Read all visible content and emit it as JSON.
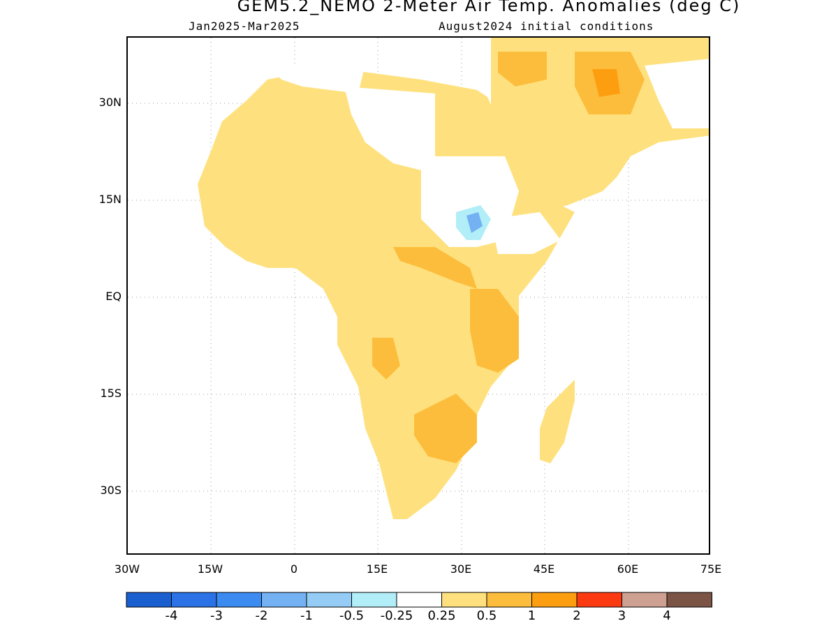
{
  "header": {
    "title": "GEM5.2_NEMO 2-Meter Air Temp. Anomalies (deg C)",
    "period": "Jan2025-Mar2025",
    "init": "August2024 initial conditions"
  },
  "map": {
    "lat_ticks": [
      "30N",
      "15N",
      "EQ",
      "15S",
      "30S"
    ],
    "lon_ticks": [
      "30W",
      "15W",
      "0",
      "15E",
      "30E",
      "45E",
      "60E",
      "75E"
    ],
    "region": "Africa and Middle East",
    "extent": {
      "lon": [
        -30,
        75
      ],
      "lat": [
        -40,
        38
      ]
    }
  },
  "legend": {
    "colors": [
      "#1a5fd0",
      "#2a72e6",
      "#3c8bf0",
      "#74b1f3",
      "#94ccf6",
      "#b2eef8",
      "#ffffff",
      "#fee17e",
      "#fdbd3c",
      "#fd9e10",
      "#fc3a12",
      "#cea092",
      "#7b5446"
    ],
    "labels": [
      "-4",
      "-3",
      "-2",
      "-1",
      "-0.5",
      "-0.25",
      "0.25",
      "0.5",
      "1",
      "2",
      "3",
      "4"
    ]
  },
  "colors": {
    "light_warm": "#fee17e",
    "moderate_warm": "#fdbd3c",
    "strong_warm": "#fd9e10",
    "light_cool": "#b2eef8",
    "cool": "#74b1f3"
  }
}
